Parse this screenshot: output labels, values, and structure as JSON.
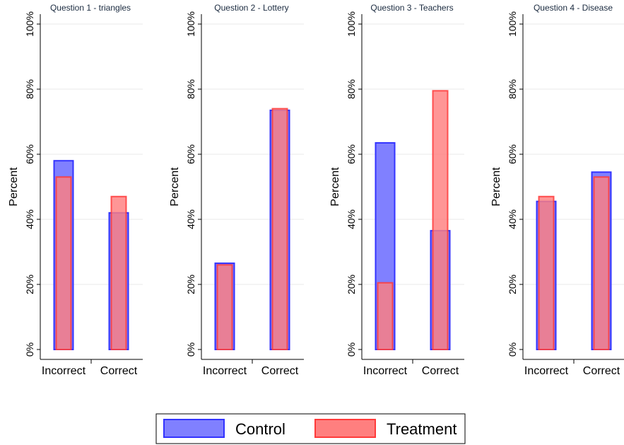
{
  "chart_data": [
    {
      "type": "bar",
      "title": "Question 1 - triangles",
      "ylabel": "Percent",
      "categories": [
        "Incorrect",
        "Correct"
      ],
      "ylim": [
        0,
        100
      ],
      "y_ticks": [
        "0%",
        "20%",
        "40%",
        "60%",
        "80%",
        "100%"
      ],
      "series": [
        {
          "name": "Control",
          "values": [
            58.0,
            42.0
          ]
        },
        {
          "name": "Treatment",
          "values": [
            53.0,
            47.0
          ]
        }
      ]
    },
    {
      "type": "bar",
      "title": "Question 2 - Lottery",
      "ylabel": "Percent",
      "categories": [
        "Incorrect",
        "Correct"
      ],
      "ylim": [
        0,
        100
      ],
      "y_ticks": [
        "0%",
        "20%",
        "40%",
        "60%",
        "80%",
        "100%"
      ],
      "series": [
        {
          "name": "Control",
          "values": [
            26.5,
            73.5
          ]
        },
        {
          "name": "Treatment",
          "values": [
            26.0,
            74.0
          ]
        }
      ]
    },
    {
      "type": "bar",
      "title": "Question 3 - Teachers",
      "ylabel": "Percent",
      "categories": [
        "Incorrect",
        "Correct"
      ],
      "ylim": [
        0,
        100
      ],
      "y_ticks": [
        "0%",
        "20%",
        "40%",
        "60%",
        "80%",
        "100%"
      ],
      "series": [
        {
          "name": "Control",
          "values": [
            63.5,
            36.5
          ]
        },
        {
          "name": "Treatment",
          "values": [
            20.5,
            79.5
          ]
        }
      ]
    },
    {
      "type": "bar",
      "title": "Question 4 - Disease",
      "ylabel": "Percent",
      "categories": [
        "Incorrect",
        "Correct"
      ],
      "ylim": [
        0,
        100
      ],
      "y_ticks": [
        "0%",
        "20%",
        "40%",
        "60%",
        "80%",
        "100%"
      ],
      "series": [
        {
          "name": "Control",
          "values": [
            45.5,
            54.5
          ]
        },
        {
          "name": "Treatment",
          "values": [
            47.0,
            53.0
          ]
        }
      ]
    }
  ],
  "legend": {
    "placement": "bottom-center",
    "items": [
      {
        "label": "Control",
        "fill": "#8080ff",
        "stroke": "#3333ff"
      },
      {
        "label": "Treatment",
        "fill": "#ff7f7f",
        "stroke": "#ff3a3a"
      }
    ]
  },
  "colors": {
    "control_fill": "#8080ff",
    "control_stroke": "#3333ff",
    "treatment_fill": "#ff7f7f",
    "treatment_stroke": "#ff3a3a",
    "title_text": "#1a2a3f",
    "grid": "#eaeaea"
  },
  "grid": true
}
